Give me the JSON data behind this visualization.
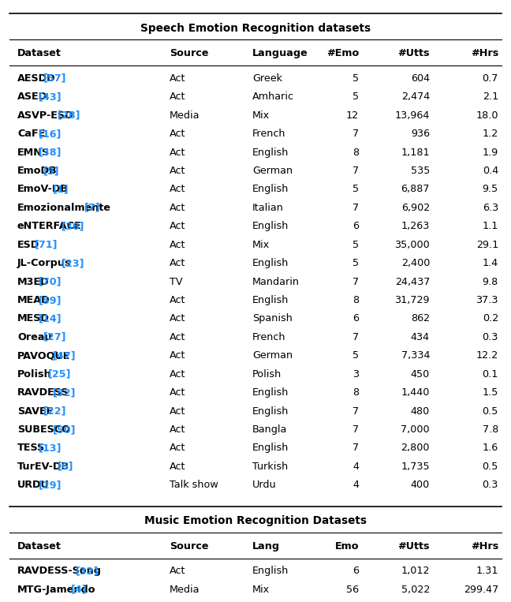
{
  "title1": "Speech Emotion Recognition datasets",
  "title2": "Music Emotion Recognition Datasets",
  "header1": [
    "Dataset",
    "Source",
    "Language",
    "#Emo",
    "#Utts",
    "#Hrs"
  ],
  "header2": [
    "Dataset",
    "Source",
    "Lang",
    "Emo",
    "#Utts",
    "#Hrs"
  ],
  "speech_rows": [
    [
      "AESDD",
      "57",
      "Act",
      "Greek",
      "5",
      "604",
      "0.7"
    ],
    [
      "ASED",
      "43",
      "Act",
      "Amharic",
      "5",
      "2,474",
      "2.1"
    ],
    [
      "ASVP-ESD",
      "28",
      "Media",
      "Mix",
      "12",
      "13,964",
      "18.0"
    ],
    [
      "CaFE",
      "16",
      "Act",
      "French",
      "7",
      "936",
      "1.2"
    ],
    [
      "EMNS",
      "38",
      "Act",
      "English",
      "8",
      "1,181",
      "1.9"
    ],
    [
      "EmoDB",
      "5",
      "Act",
      "German",
      "7",
      "535",
      "0.4"
    ],
    [
      "EmoV-DB",
      "1",
      "Act",
      "English",
      "5",
      "6,887",
      "9.5"
    ],
    [
      "Emozionalmente",
      "7",
      "Act",
      "Italian",
      "7",
      "6,902",
      "6.3"
    ],
    [
      "eNTERFACE",
      "36",
      "Act",
      "English",
      "6",
      "1,263",
      "1.1"
    ],
    [
      "ESD",
      "71",
      "Act",
      "Mix",
      "5",
      "35,000",
      "29.1"
    ],
    [
      "JL-Corpus",
      "23",
      "Act",
      "English",
      "5",
      "2,400",
      "1.4"
    ],
    [
      "M3ED",
      "70",
      "TV",
      "Mandarin",
      "7",
      "24,437",
      "9.8"
    ],
    [
      "MEAD",
      "59",
      "Act",
      "English",
      "8",
      "31,729",
      "37.3"
    ],
    [
      "MESD",
      "14",
      "Act",
      "Spanish",
      "6",
      "862",
      "0.2"
    ],
    [
      "Oreau",
      "27",
      "Act",
      "French",
      "7",
      "434",
      "0.3"
    ],
    [
      "PAVOQUE",
      "47",
      "Act",
      "German",
      "5",
      "7,334",
      "12.2"
    ],
    [
      "Polish",
      "25",
      "Act",
      "Polish",
      "3",
      "450",
      "0.1"
    ],
    [
      "RAVDESS",
      "32",
      "Act",
      "English",
      "8",
      "1,440",
      "1.5"
    ],
    [
      "SAVEE",
      "22",
      "Act",
      "English",
      "7",
      "480",
      "0.5"
    ],
    [
      "SUBESCO",
      "50",
      "Act",
      "Bangla",
      "7",
      "7,000",
      "7.8"
    ],
    [
      "TESS",
      "13",
      "Act",
      "English",
      "7",
      "2,800",
      "1.6"
    ],
    [
      "TurEV-DB",
      "6",
      "Act",
      "Turkish",
      "4",
      "1,735",
      "0.5"
    ],
    [
      "URDU",
      "29",
      "Talk show",
      "Urdu",
      "4",
      "400",
      "0.3"
    ]
  ],
  "music_rows": [
    [
      "RAVDESS-Song",
      "32",
      "Act",
      "English",
      "6",
      "1,012",
      "1.31"
    ],
    [
      "MTG-Jamendo",
      "4",
      "Media",
      "Mix",
      "56",
      "5,022",
      "299.47"
    ]
  ],
  "link_color": "#1E90FF",
  "text_color": "#000000",
  "bg_color": "#FFFFFF",
  "font_size": 9.2,
  "header_font_size": 9.2,
  "title_font_size": 9.8
}
